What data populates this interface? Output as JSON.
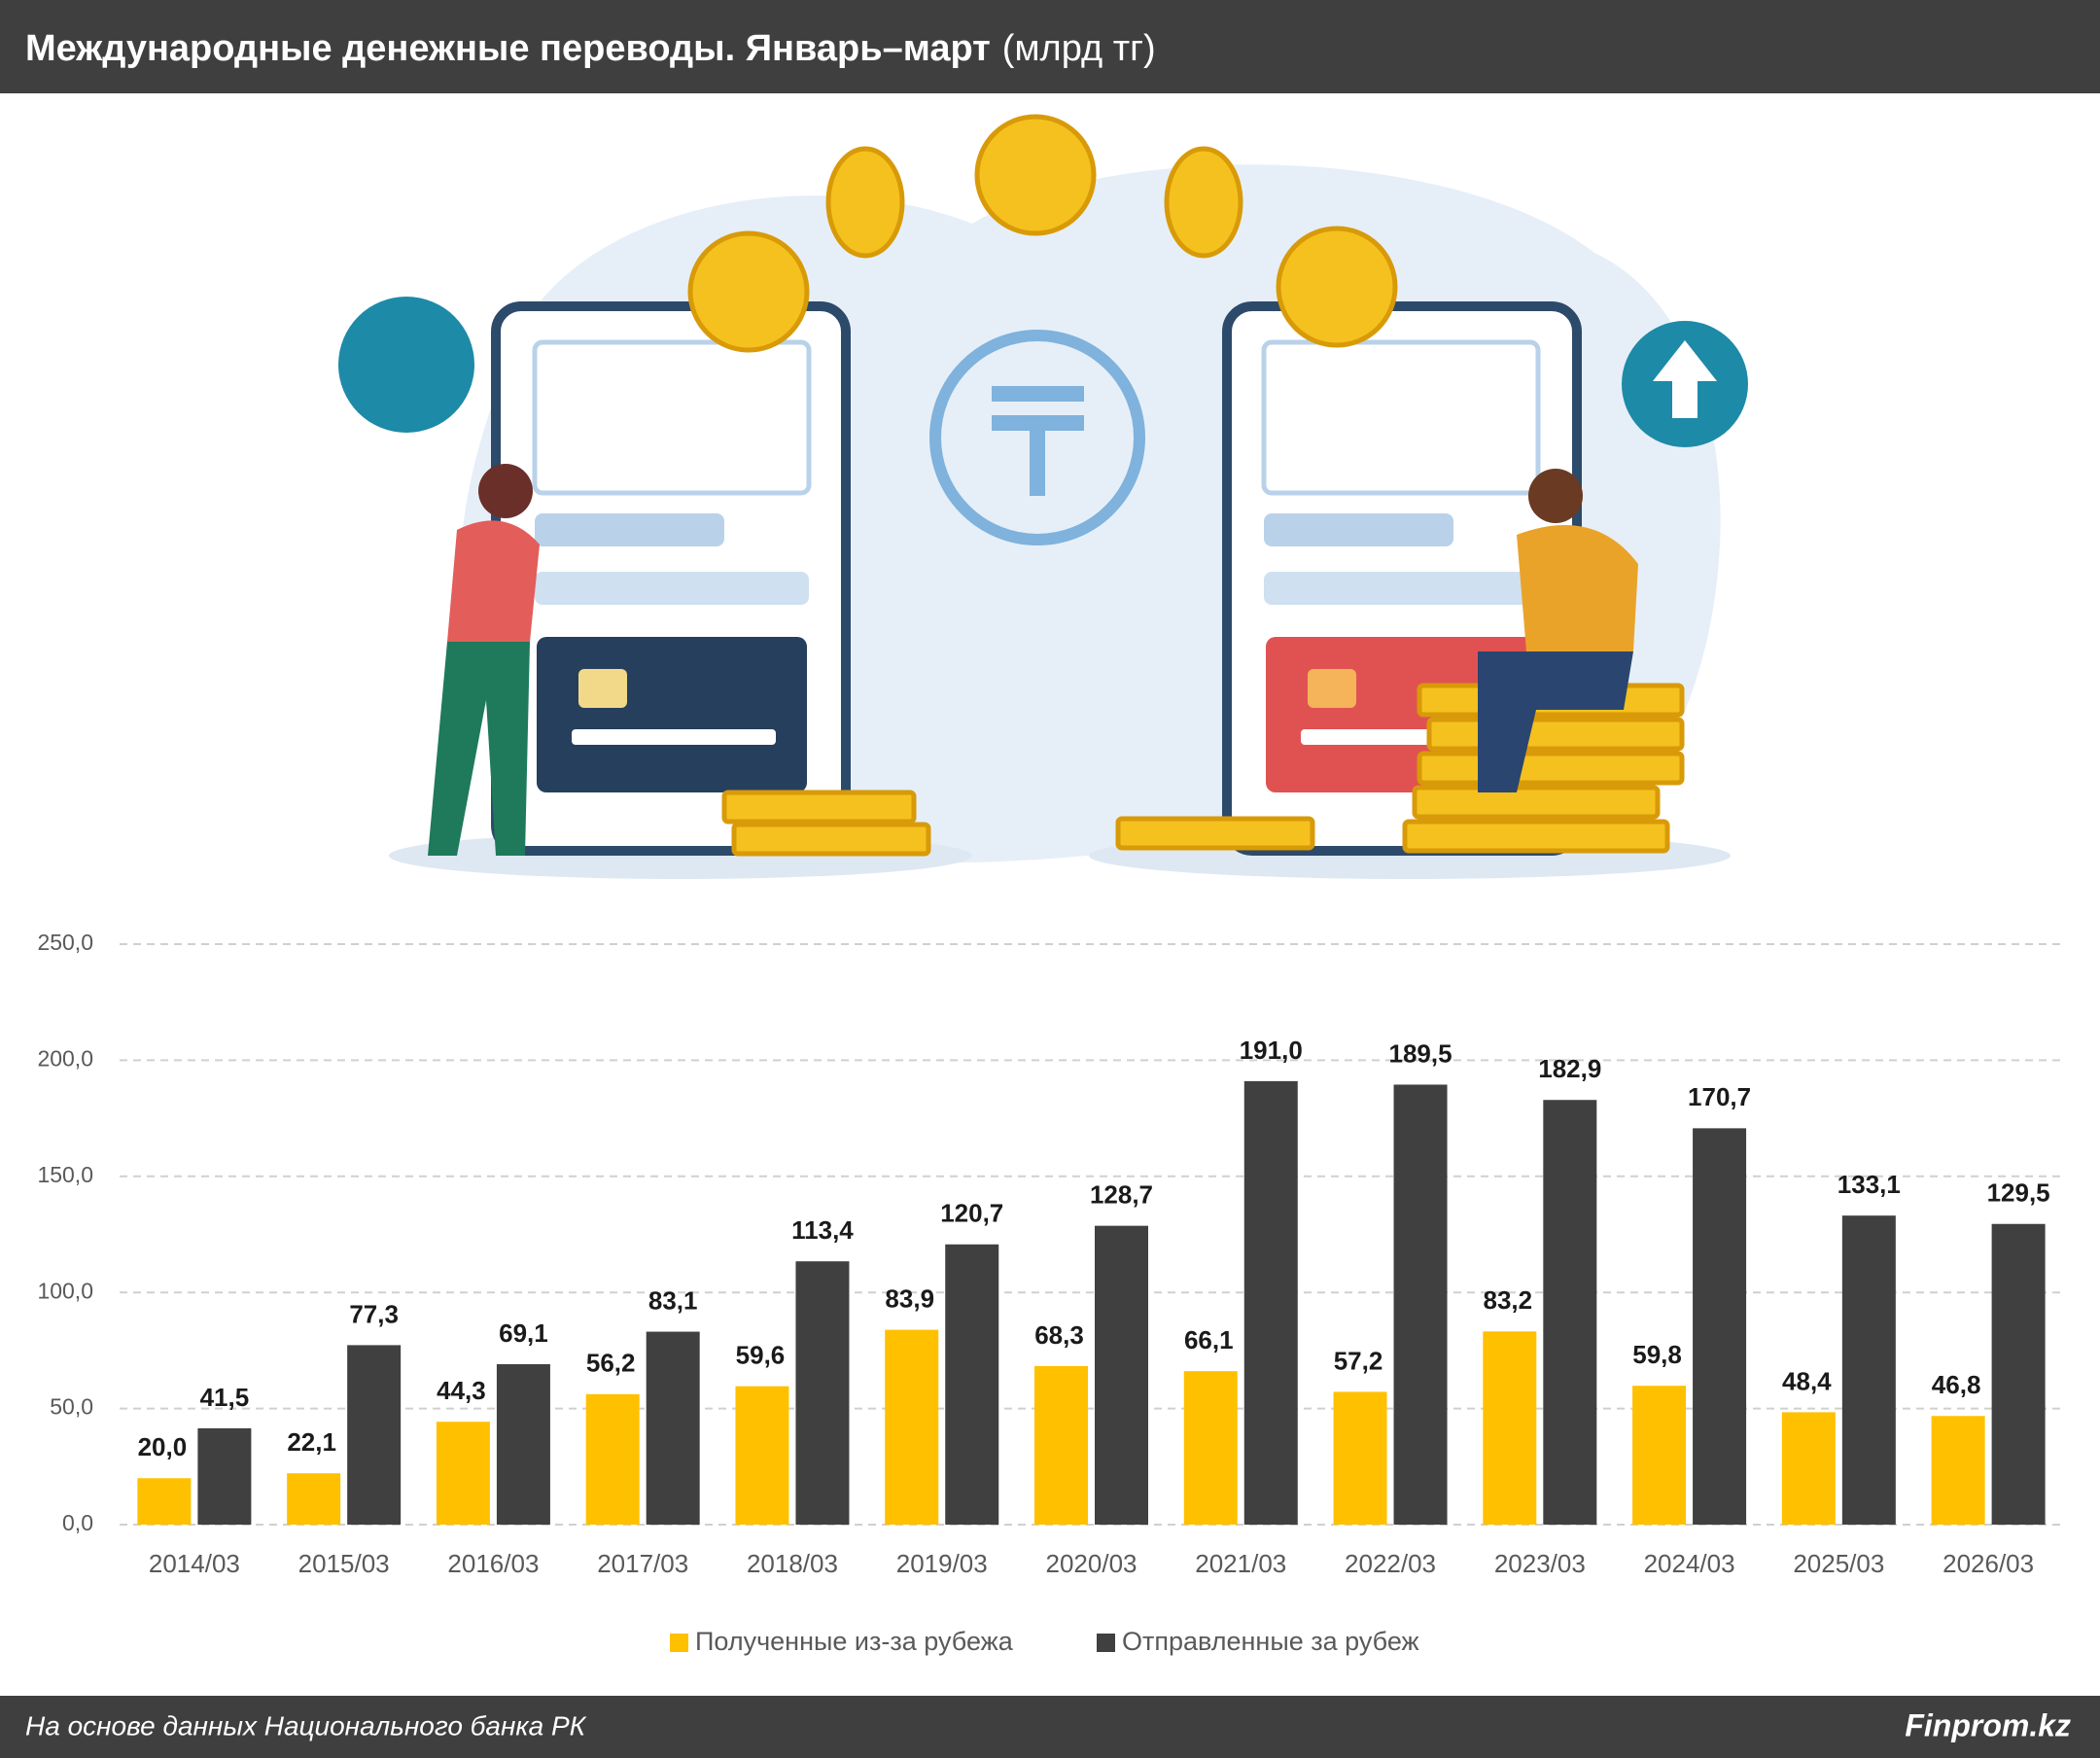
{
  "chart_data": {
    "type": "bar",
    "title": "Международные денежные переводы. Январь–март",
    "subtitle": "(млрд тг)",
    "source": "На основе данных Национального банка РК",
    "brand": "Finprom.kz",
    "categories": [
      "2014/03",
      "2015/03",
      "2016/03",
      "2017/03",
      "2018/03",
      "2019/03",
      "2020/03",
      "2021/03",
      "2022/03",
      "2023/03",
      "2024/03",
      "2025/03",
      "2026/03"
    ],
    "series": [
      {
        "name": "Полученные из-за рубежа",
        "color": "#FFC000",
        "values": [
          20.0,
          22.1,
          44.3,
          56.2,
          59.6,
          83.9,
          68.3,
          66.1,
          57.2,
          83.2,
          59.8,
          48.4,
          46.8
        ],
        "value_labels": [
          "20,0",
          "22,1",
          "44,3",
          "56,2",
          "59,6",
          "83,9",
          "68,3",
          "66,1",
          "57,2",
          "83,2",
          "59,8",
          "48,4",
          "46,8"
        ]
      },
      {
        "name": "Отправленные за рубеж",
        "color": "#404040",
        "values": [
          41.5,
          77.3,
          69.1,
          83.1,
          113.4,
          120.7,
          128.7,
          191.0,
          189.5,
          182.9,
          170.7,
          133.1,
          129.5
        ],
        "value_labels": [
          "41,5",
          "77,3",
          "69,1",
          "83,1",
          "113,4",
          "120,7",
          "128,7",
          "191,0",
          "189,5",
          "182,9",
          "170,7",
          "133,1",
          "129,5"
        ]
      }
    ],
    "ylim": [
      0,
      250
    ],
    "yticks": [
      {
        "value": 0,
        "label": "0,0"
      },
      {
        "value": 50,
        "label": "50,0"
      },
      {
        "value": 100,
        "label": "100,0"
      },
      {
        "value": 150,
        "label": "150,0"
      },
      {
        "value": 200,
        "label": "200,0"
      },
      {
        "value": 250,
        "label": "250,0"
      }
    ],
    "grid": true,
    "legend": "bottom"
  }
}
